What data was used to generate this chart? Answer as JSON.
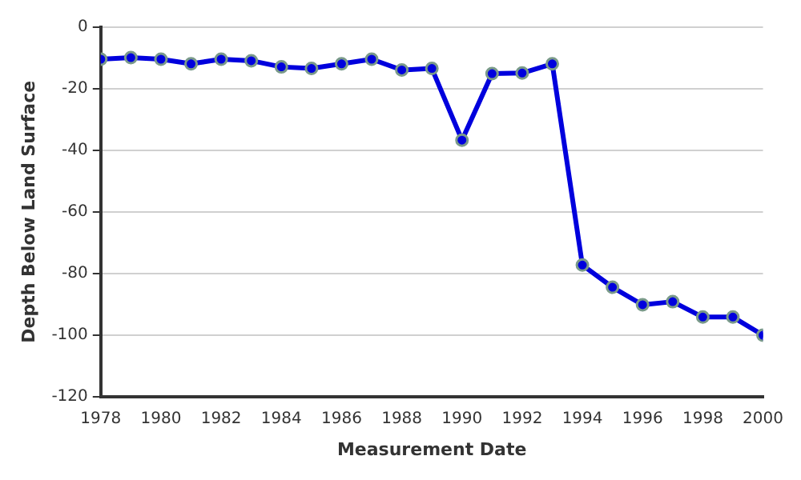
{
  "chart_data": {
    "type": "line",
    "xlabel": "Measurement Date",
    "ylabel": "Depth Below Land Surface",
    "x": [
      1978,
      1979,
      1980,
      1981,
      1982,
      1983,
      1984,
      1985,
      1986,
      1987,
      1988,
      1989,
      1990,
      1991,
      1992,
      1993,
      1994,
      1995,
      1996,
      1997,
      1998,
      1999,
      2000
    ],
    "series": [
      {
        "color": "#0000dd",
        "values": [
          -10.4,
          -9.9,
          -10.4,
          -11.9,
          -10.4,
          -10.9,
          -12.9,
          -13.4,
          -11.9,
          -10.4,
          -13.9,
          -13.4,
          -36.7,
          -15.1,
          -14.9,
          -11.9,
          -77.3,
          -84.5,
          -90.2,
          -89.2,
          -94.2,
          -94.2,
          -100.1
        ]
      }
    ],
    "xlim": [
      1978,
      2000
    ],
    "xticks": [
      1978,
      1980,
      1982,
      1984,
      1986,
      1988,
      1990,
      1992,
      1994,
      1996,
      1998,
      2000
    ],
    "ylim": [
      -120,
      0
    ],
    "yticks": [
      -120,
      -100,
      -80,
      -60,
      -40,
      -20,
      0
    ],
    "grid": "y",
    "marker": "circle",
    "line_style": "solid",
    "legend": false
  }
}
